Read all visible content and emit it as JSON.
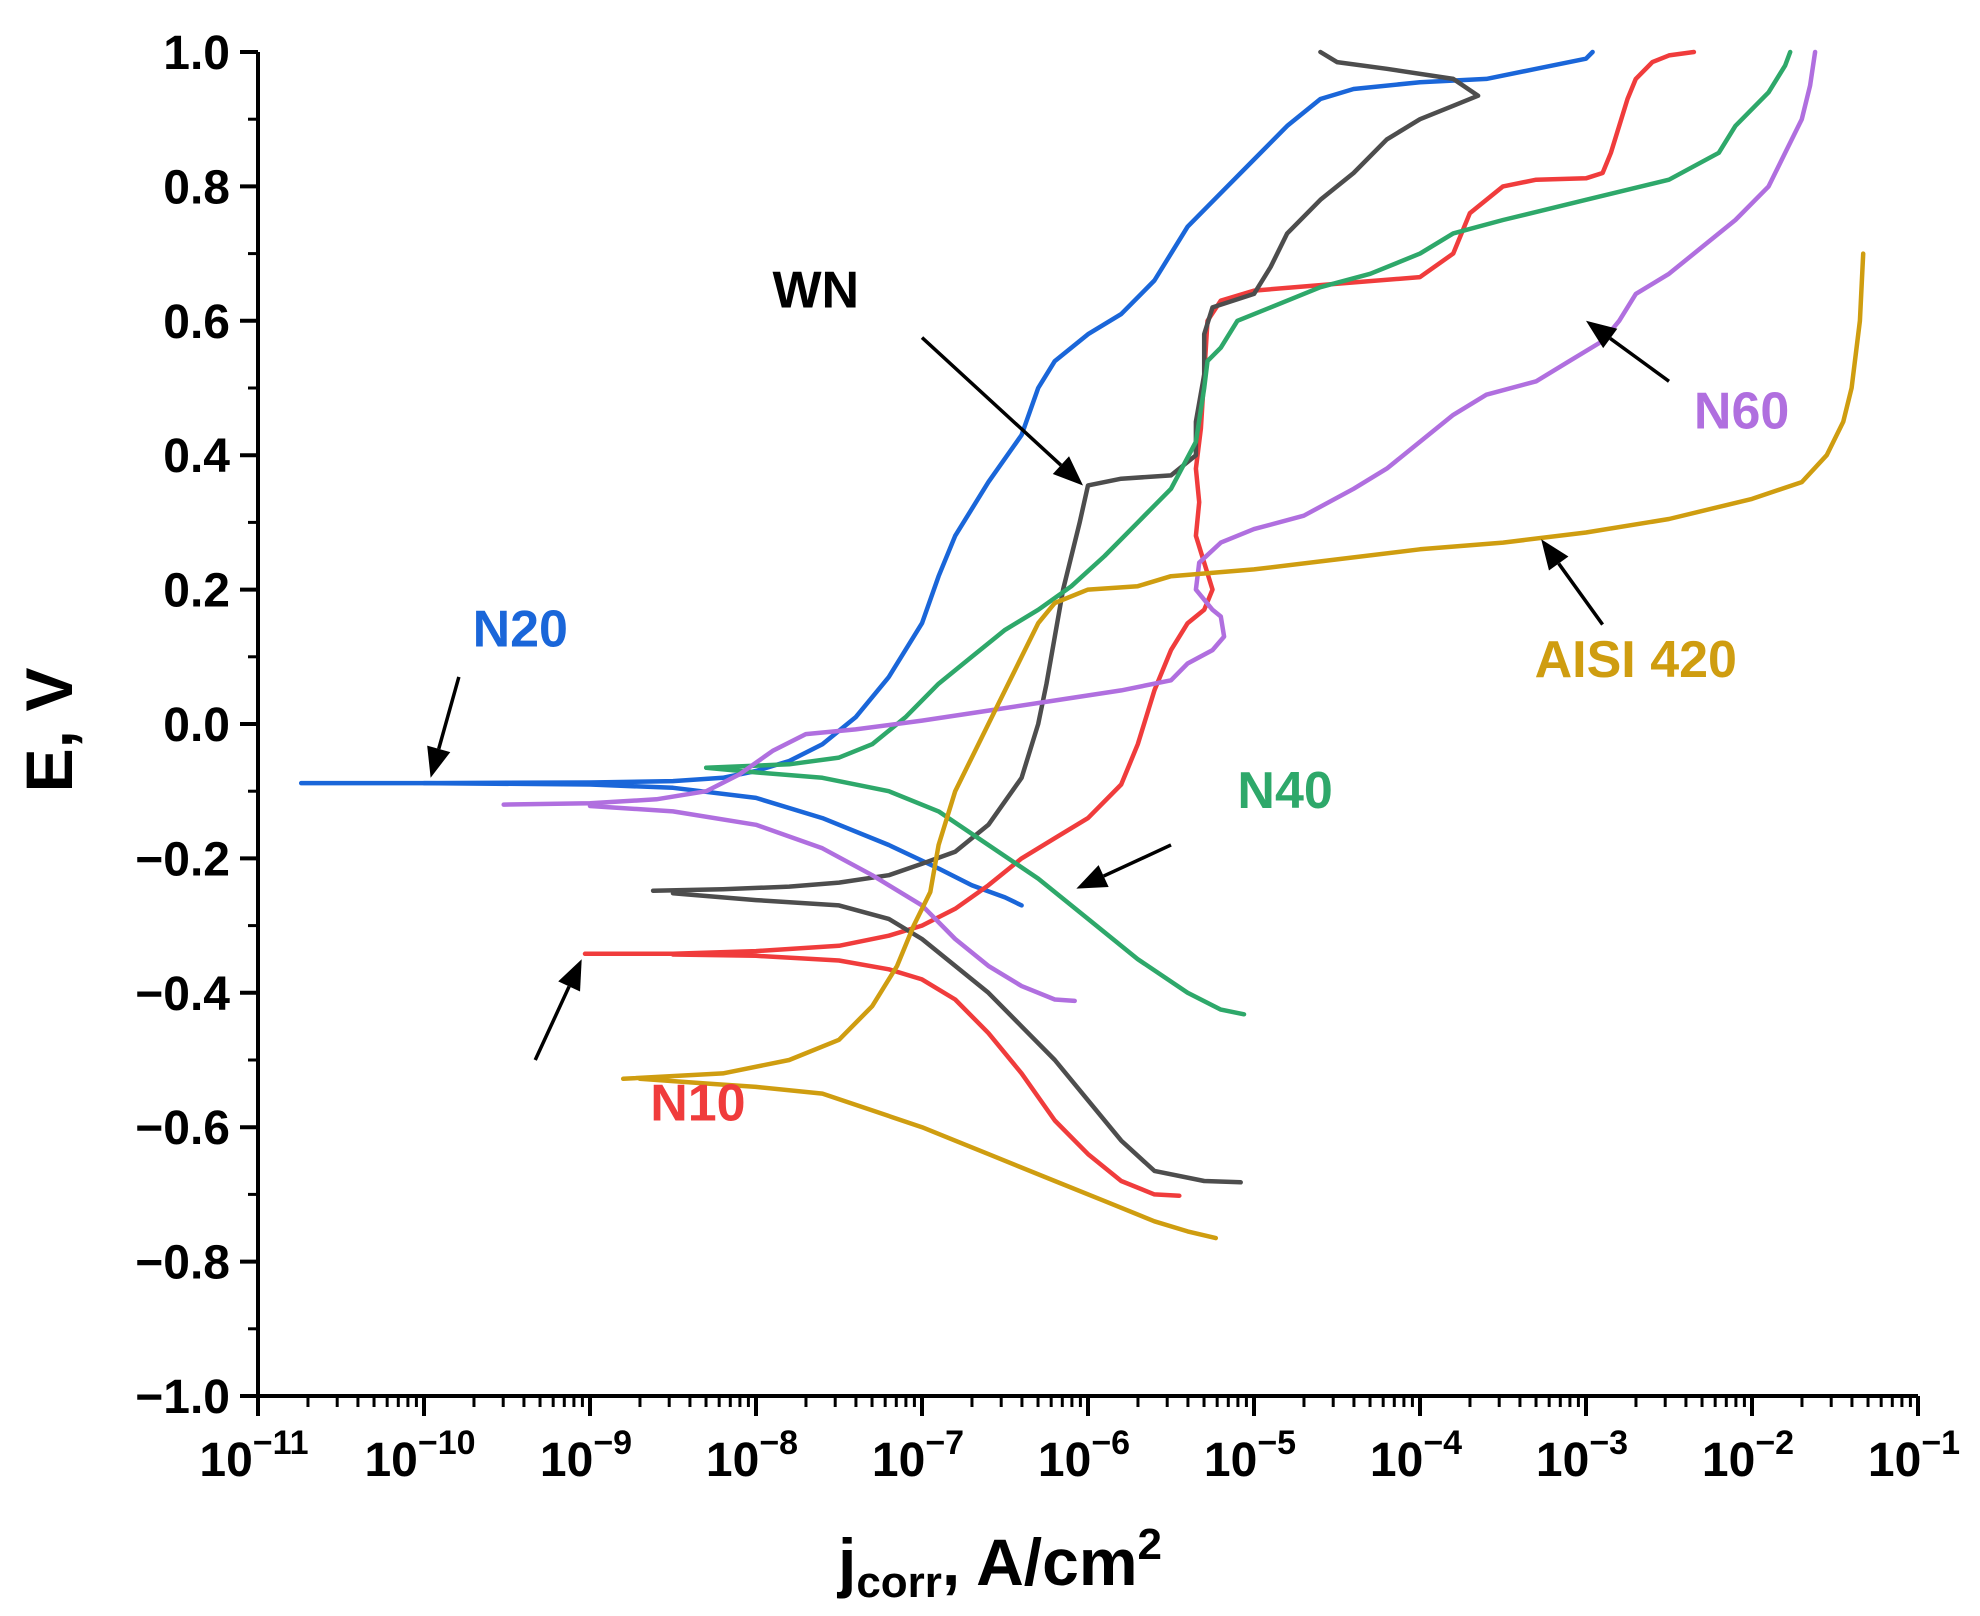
{
  "chart_data": {
    "type": "line",
    "title": "",
    "xlabel": "j",
    "xlabel_sub": "corr",
    "xlabel_unit": ", A/cm",
    "xlabel_sup": "2",
    "ylabel": "E, V",
    "x_scale": "log",
    "xlim_exp": [
      -11,
      -1
    ],
    "ylim": [
      -1.0,
      1.0
    ],
    "x_tick_base": "10",
    "x_tick_exponents": [
      "−11",
      "−10",
      "−9",
      "−8",
      "−7",
      "−6",
      "−5",
      "−4",
      "−3",
      "−2",
      "−1"
    ],
    "y_ticks": [
      "1.0",
      "0.8",
      "0.6",
      "0.4",
      "0.2",
      "0.0",
      "−0.2",
      "−0.4",
      "−0.6",
      "−0.8",
      "−1.0"
    ],
    "series": [
      {
        "name": "N20",
        "color": "#1a66d9",
        "points": [
          [
            -10.74,
            -0.088
          ],
          [
            -10.0,
            -0.088
          ],
          [
            -9.0,
            -0.087
          ],
          [
            -8.5,
            -0.085
          ],
          [
            -8.2,
            -0.08
          ],
          [
            -8.0,
            -0.07
          ],
          [
            -7.8,
            -0.055
          ],
          [
            -7.6,
            -0.03
          ],
          [
            -7.4,
            0.01
          ],
          [
            -7.2,
            0.07
          ],
          [
            -7.0,
            0.15
          ],
          [
            -6.9,
            0.22
          ],
          [
            -6.8,
            0.28
          ],
          [
            -6.6,
            0.36
          ],
          [
            -6.4,
            0.43
          ],
          [
            -6.3,
            0.5
          ],
          [
            -6.2,
            0.54
          ],
          [
            -6.0,
            0.58
          ],
          [
            -5.8,
            0.61
          ],
          [
            -5.6,
            0.66
          ],
          [
            -5.4,
            0.74
          ],
          [
            -5.2,
            0.79
          ],
          [
            -5.0,
            0.84
          ],
          [
            -4.8,
            0.89
          ],
          [
            -4.6,
            0.93
          ],
          [
            -4.4,
            0.945
          ],
          [
            -4.0,
            0.955
          ],
          [
            -3.6,
            0.96
          ],
          [
            -3.3,
            0.975
          ],
          [
            -3.0,
            0.99
          ],
          [
            -2.96,
            1.0
          ]
        ],
        "cathodic": [
          [
            -10.0,
            -0.088
          ],
          [
            -9.0,
            -0.09
          ],
          [
            -8.5,
            -0.095
          ],
          [
            -8.0,
            -0.11
          ],
          [
            -7.6,
            -0.14
          ],
          [
            -7.2,
            -0.18
          ],
          [
            -6.9,
            -0.215
          ],
          [
            -6.7,
            -0.24
          ],
          [
            -6.5,
            -0.258
          ],
          [
            -6.4,
            -0.27
          ]
        ]
      },
      {
        "name": "N10",
        "color": "#f03c3c",
        "points": [
          [
            -9.03,
            -0.342
          ],
          [
            -8.5,
            -0.342
          ],
          [
            -8.0,
            -0.338
          ],
          [
            -7.5,
            -0.33
          ],
          [
            -7.2,
            -0.315
          ],
          [
            -7.0,
            -0.3
          ],
          [
            -6.8,
            -0.275
          ],
          [
            -6.6,
            -0.24
          ],
          [
            -6.4,
            -0.2
          ],
          [
            -6.2,
            -0.17
          ],
          [
            -6.0,
            -0.14
          ],
          [
            -5.8,
            -0.09
          ],
          [
            -5.7,
            -0.03
          ],
          [
            -5.6,
            0.05
          ],
          [
            -5.5,
            0.11
          ],
          [
            -5.4,
            0.15
          ],
          [
            -5.3,
            0.17
          ],
          [
            -5.25,
            0.2
          ],
          [
            -5.3,
            0.24
          ],
          [
            -5.35,
            0.28
          ],
          [
            -5.33,
            0.33
          ],
          [
            -5.35,
            0.38
          ],
          [
            -5.32,
            0.44
          ],
          [
            -5.3,
            0.52
          ],
          [
            -5.28,
            0.6
          ],
          [
            -5.2,
            0.63
          ],
          [
            -5.0,
            0.645
          ],
          [
            -4.5,
            0.655
          ],
          [
            -4.0,
            0.665
          ],
          [
            -3.8,
            0.7
          ],
          [
            -3.7,
            0.76
          ],
          [
            -3.5,
            0.8
          ],
          [
            -3.3,
            0.81
          ],
          [
            -3.0,
            0.812
          ],
          [
            -2.9,
            0.82
          ],
          [
            -2.85,
            0.85
          ],
          [
            -2.8,
            0.89
          ],
          [
            -2.75,
            0.93
          ],
          [
            -2.7,
            0.96
          ],
          [
            -2.6,
            0.985
          ],
          [
            -2.5,
            0.995
          ],
          [
            -2.35,
            1.0
          ]
        ],
        "cathodic": [
          [
            -8.5,
            -0.343
          ],
          [
            -8.0,
            -0.345
          ],
          [
            -7.5,
            -0.352
          ],
          [
            -7.2,
            -0.365
          ],
          [
            -7.0,
            -0.38
          ],
          [
            -6.8,
            -0.41
          ],
          [
            -6.6,
            -0.46
          ],
          [
            -6.4,
            -0.52
          ],
          [
            -6.2,
            -0.59
          ],
          [
            -6.0,
            -0.64
          ],
          [
            -5.8,
            -0.68
          ],
          [
            -5.6,
            -0.7
          ],
          [
            -5.45,
            -0.702
          ]
        ]
      },
      {
        "name": "WN",
        "color": "#4d4d4d",
        "points": [
          [
            -8.62,
            -0.248
          ],
          [
            -8.2,
            -0.246
          ],
          [
            -7.8,
            -0.242
          ],
          [
            -7.5,
            -0.236
          ],
          [
            -7.2,
            -0.225
          ],
          [
            -7.0,
            -0.208
          ],
          [
            -6.8,
            -0.19
          ],
          [
            -6.6,
            -0.15
          ],
          [
            -6.4,
            -0.08
          ],
          [
            -6.3,
            0.0
          ],
          [
            -6.25,
            0.06
          ],
          [
            -6.2,
            0.13
          ],
          [
            -6.15,
            0.2
          ],
          [
            -6.05,
            0.3
          ],
          [
            -6.0,
            0.355
          ],
          [
            -5.8,
            0.365
          ],
          [
            -5.5,
            0.37
          ],
          [
            -5.35,
            0.4
          ],
          [
            -5.35,
            0.45
          ],
          [
            -5.3,
            0.52
          ],
          [
            -5.3,
            0.58
          ],
          [
            -5.25,
            0.62
          ],
          [
            -5.0,
            0.64
          ],
          [
            -4.9,
            0.68
          ],
          [
            -4.8,
            0.73
          ],
          [
            -4.6,
            0.78
          ],
          [
            -4.4,
            0.82
          ],
          [
            -4.2,
            0.87
          ],
          [
            -4.0,
            0.9
          ],
          [
            -3.8,
            0.92
          ],
          [
            -3.65,
            0.935
          ],
          [
            -3.8,
            0.96
          ],
          [
            -4.2,
            0.975
          ],
          [
            -4.5,
            0.985
          ],
          [
            -4.6,
            1.0
          ]
        ],
        "cathodic": [
          [
            -8.5,
            -0.252
          ],
          [
            -8.0,
            -0.262
          ],
          [
            -7.5,
            -0.27
          ],
          [
            -7.2,
            -0.29
          ],
          [
            -7.0,
            -0.32
          ],
          [
            -6.8,
            -0.36
          ],
          [
            -6.6,
            -0.4
          ],
          [
            -6.4,
            -0.45
          ],
          [
            -6.2,
            -0.5
          ],
          [
            -6.0,
            -0.56
          ],
          [
            -5.8,
            -0.62
          ],
          [
            -5.6,
            -0.665
          ],
          [
            -5.3,
            -0.68
          ],
          [
            -5.08,
            -0.682
          ]
        ]
      },
      {
        "name": "N40",
        "color": "#2ea86a",
        "points": [
          [
            -8.3,
            -0.065
          ],
          [
            -7.8,
            -0.06
          ],
          [
            -7.5,
            -0.05
          ],
          [
            -7.3,
            -0.03
          ],
          [
            -7.1,
            0.01
          ],
          [
            -6.9,
            0.06
          ],
          [
            -6.7,
            0.1
          ],
          [
            -6.5,
            0.14
          ],
          [
            -6.3,
            0.17
          ],
          [
            -6.1,
            0.205
          ],
          [
            -5.9,
            0.25
          ],
          [
            -5.7,
            0.3
          ],
          [
            -5.5,
            0.35
          ],
          [
            -5.35,
            0.42
          ],
          [
            -5.3,
            0.5
          ],
          [
            -5.28,
            0.54
          ],
          [
            -5.2,
            0.56
          ],
          [
            -5.1,
            0.6
          ],
          [
            -4.9,
            0.62
          ],
          [
            -4.6,
            0.65
          ],
          [
            -4.3,
            0.67
          ],
          [
            -4.0,
            0.7
          ],
          [
            -3.8,
            0.73
          ],
          [
            -3.5,
            0.75
          ],
          [
            -3.0,
            0.78
          ],
          [
            -2.5,
            0.81
          ],
          [
            -2.2,
            0.85
          ],
          [
            -2.1,
            0.89
          ],
          [
            -1.9,
            0.94
          ],
          [
            -1.8,
            0.98
          ],
          [
            -1.77,
            1.0
          ]
        ],
        "cathodic": [
          [
            -8.3,
            -0.065
          ],
          [
            -8.0,
            -0.072
          ],
          [
            -7.6,
            -0.08
          ],
          [
            -7.2,
            -0.1
          ],
          [
            -6.9,
            -0.13
          ],
          [
            -6.6,
            -0.18
          ],
          [
            -6.3,
            -0.23
          ],
          [
            -6.0,
            -0.29
          ],
          [
            -5.7,
            -0.35
          ],
          [
            -5.4,
            -0.4
          ],
          [
            -5.2,
            -0.425
          ],
          [
            -5.06,
            -0.432
          ]
        ]
      },
      {
        "name": "N60",
        "color": "#b06fdf",
        "points": [
          [
            -9.52,
            -0.12
          ],
          [
            -9.0,
            -0.118
          ],
          [
            -8.6,
            -0.112
          ],
          [
            -8.3,
            -0.1
          ],
          [
            -8.1,
            -0.075
          ],
          [
            -7.9,
            -0.04
          ],
          [
            -7.7,
            -0.015
          ],
          [
            -7.4,
            -0.008
          ],
          [
            -7.0,
            0.005
          ],
          [
            -6.6,
            0.02
          ],
          [
            -6.2,
            0.035
          ],
          [
            -5.8,
            0.05
          ],
          [
            -5.5,
            0.065
          ],
          [
            -5.4,
            0.09
          ],
          [
            -5.25,
            0.11
          ],
          [
            -5.18,
            0.13
          ],
          [
            -5.2,
            0.16
          ],
          [
            -5.25,
            0.17
          ],
          [
            -5.35,
            0.2
          ],
          [
            -5.33,
            0.24
          ],
          [
            -5.2,
            0.27
          ],
          [
            -5.0,
            0.29
          ],
          [
            -4.7,
            0.31
          ],
          [
            -4.4,
            0.35
          ],
          [
            -4.2,
            0.38
          ],
          [
            -4.0,
            0.42
          ],
          [
            -3.8,
            0.46
          ],
          [
            -3.6,
            0.49
          ],
          [
            -3.3,
            0.51
          ],
          [
            -3.1,
            0.54
          ],
          [
            -2.9,
            0.57
          ],
          [
            -2.8,
            0.6
          ],
          [
            -2.7,
            0.64
          ],
          [
            -2.5,
            0.67
          ],
          [
            -2.3,
            0.71
          ],
          [
            -2.1,
            0.75
          ],
          [
            -1.9,
            0.8
          ],
          [
            -1.8,
            0.85
          ],
          [
            -1.7,
            0.9
          ],
          [
            -1.65,
            0.95
          ],
          [
            -1.62,
            1.0
          ]
        ],
        "cathodic": [
          [
            -9.0,
            -0.122
          ],
          [
            -8.5,
            -0.13
          ],
          [
            -8.0,
            -0.15
          ],
          [
            -7.6,
            -0.185
          ],
          [
            -7.3,
            -0.225
          ],
          [
            -7.0,
            -0.27
          ],
          [
            -6.8,
            -0.32
          ],
          [
            -6.6,
            -0.36
          ],
          [
            -6.4,
            -0.39
          ],
          [
            -6.2,
            -0.41
          ],
          [
            -6.08,
            -0.412
          ]
        ]
      },
      {
        "name": "AISI 420",
        "color": "#cf9d10",
        "points": [
          [
            -8.8,
            -0.528
          ],
          [
            -8.2,
            -0.52
          ],
          [
            -7.8,
            -0.5
          ],
          [
            -7.5,
            -0.47
          ],
          [
            -7.3,
            -0.42
          ],
          [
            -7.15,
            -0.36
          ],
          [
            -7.05,
            -0.3
          ],
          [
            -6.95,
            -0.25
          ],
          [
            -6.9,
            -0.18
          ],
          [
            -6.8,
            -0.1
          ],
          [
            -6.7,
            -0.05
          ],
          [
            -6.6,
            0.0
          ],
          [
            -6.5,
            0.05
          ],
          [
            -6.4,
            0.1
          ],
          [
            -6.3,
            0.15
          ],
          [
            -6.2,
            0.18
          ],
          [
            -6.0,
            0.2
          ],
          [
            -5.7,
            0.205
          ],
          [
            -5.5,
            0.22
          ],
          [
            -5.0,
            0.23
          ],
          [
            -4.5,
            0.245
          ],
          [
            -4.0,
            0.26
          ],
          [
            -3.5,
            0.27
          ],
          [
            -3.0,
            0.285
          ],
          [
            -2.5,
            0.305
          ],
          [
            -2.0,
            0.335
          ],
          [
            -1.7,
            0.36
          ],
          [
            -1.55,
            0.4
          ],
          [
            -1.45,
            0.45
          ],
          [
            -1.4,
            0.5
          ],
          [
            -1.35,
            0.6
          ],
          [
            -1.33,
            0.7
          ]
        ],
        "cathodic": [
          [
            -8.7,
            -0.528
          ],
          [
            -8.3,
            -0.535
          ],
          [
            -8.0,
            -0.54
          ],
          [
            -7.6,
            -0.55
          ],
          [
            -7.3,
            -0.575
          ],
          [
            -7.0,
            -0.6
          ],
          [
            -6.6,
            -0.64
          ],
          [
            -6.2,
            -0.68
          ],
          [
            -5.9,
            -0.71
          ],
          [
            -5.6,
            -0.74
          ],
          [
            -5.4,
            -0.755
          ],
          [
            -5.23,
            -0.765
          ]
        ]
      }
    ],
    "annotations": [
      {
        "text": "N20",
        "color": "#1a66d9"
      },
      {
        "text": "WN",
        "color": "#000000"
      },
      {
        "text": "N40",
        "color": "#2ea86a"
      },
      {
        "text": "N10",
        "color": "#f03c3c"
      },
      {
        "text": "N60",
        "color": "#b06fdf"
      },
      {
        "text": "AISI 420",
        "color": "#cf9d10"
      }
    ]
  }
}
